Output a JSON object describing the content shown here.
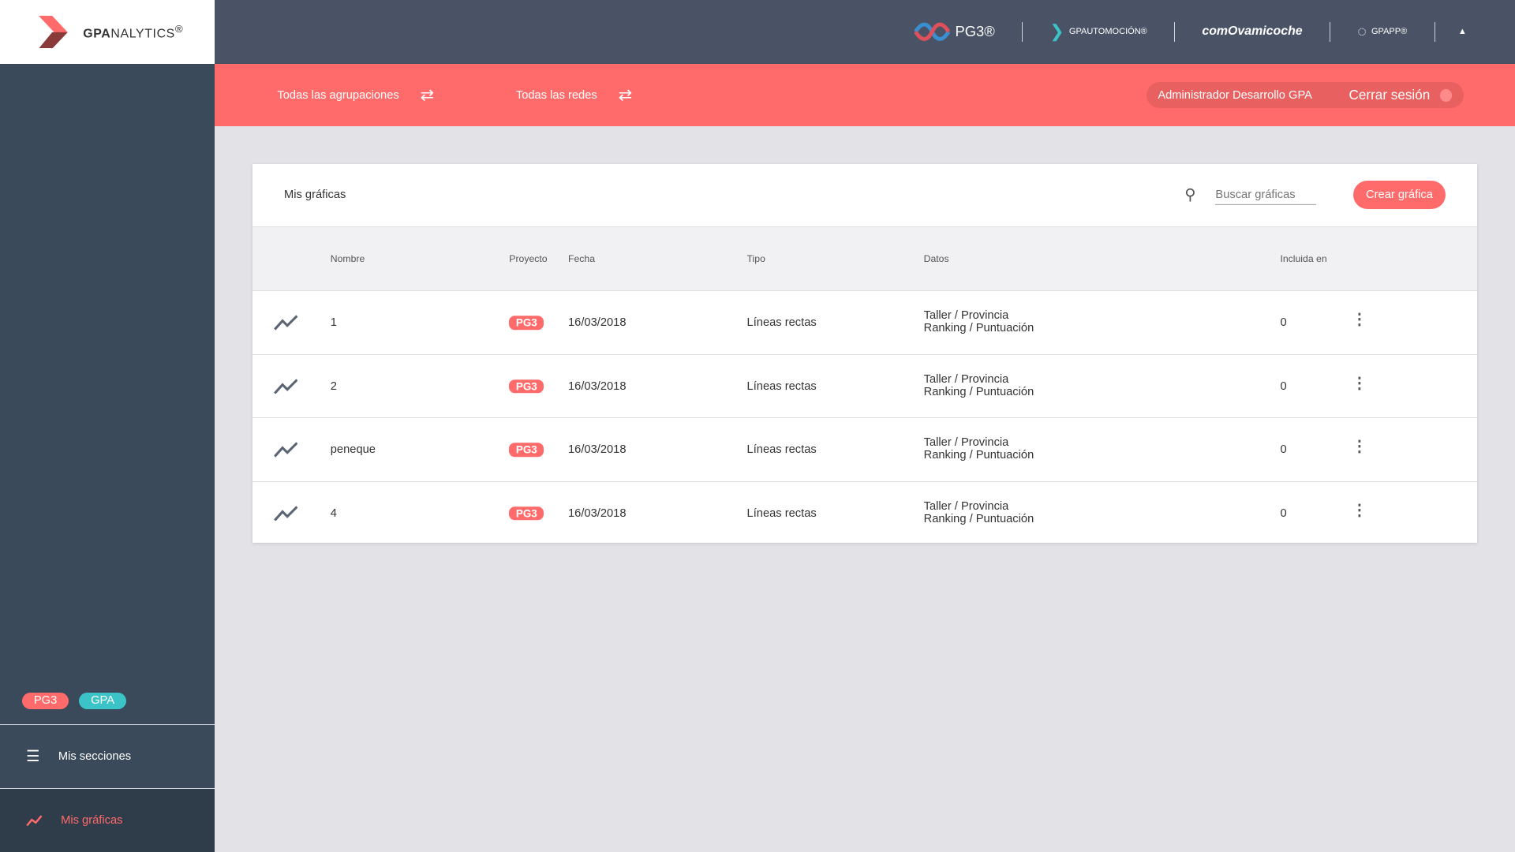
{
  "logo": {
    "brand": "GPA",
    "suffix": "NALYTICS",
    "reg": "®"
  },
  "sidebar": {
    "tags": [
      {
        "label": "PG3",
        "color": "#ff6b6b"
      },
      {
        "label": "GPA",
        "color": "#3cc3c8"
      }
    ],
    "items": [
      {
        "label": "Mis secciones",
        "icon": "menu-icon"
      },
      {
        "label": "Mis gráficas",
        "icon": "line-chart-icon",
        "active": true
      }
    ]
  },
  "topbar": {
    "brands": [
      "PG3®",
      "GPAUTOMOCIÓN®",
      "comOvamicoche",
      "GPAPP®"
    ]
  },
  "filters": {
    "groupings": "Todas las agrupaciones",
    "networks": "Todas las redes"
  },
  "user": {
    "name": "Administrador Desarrollo GPA",
    "logout": "Cerrar sesión"
  },
  "card": {
    "title": "Mis gráficas",
    "search_placeholder": "Buscar gráficas",
    "create": "Crear gráfica"
  },
  "table": {
    "headers": [
      "Nombre",
      "Proyecto",
      "Fecha",
      "Tipo",
      "Datos",
      "Incluida en"
    ],
    "rows": [
      {
        "name": "1",
        "project": "PG3",
        "date": "16/03/2018",
        "type": "Líneas rectas",
        "data1": "Taller / Provincia",
        "data2": "Ranking / Puntuación",
        "included": "0"
      },
      {
        "name": "2",
        "project": "PG3",
        "date": "16/03/2018",
        "type": "Líneas rectas",
        "data1": "Taller / Provincia",
        "data2": "Ranking / Puntuación",
        "included": "0"
      },
      {
        "name": "peneque",
        "project": "PG3",
        "date": "16/03/2018",
        "type": "Líneas rectas",
        "data1": "Taller / Provincia",
        "data2": "Ranking / Puntuación",
        "included": "0"
      },
      {
        "name": "4",
        "project": "PG3",
        "date": "16/03/2018",
        "type": "Líneas rectas",
        "data1": "Taller / Provincia",
        "data2": "Ranking / Puntuación",
        "included": "0"
      }
    ]
  },
  "colors": {
    "accent": "#ff6b6b",
    "sidebar": "#3a4a5a",
    "topbar": "#4a5366"
  }
}
